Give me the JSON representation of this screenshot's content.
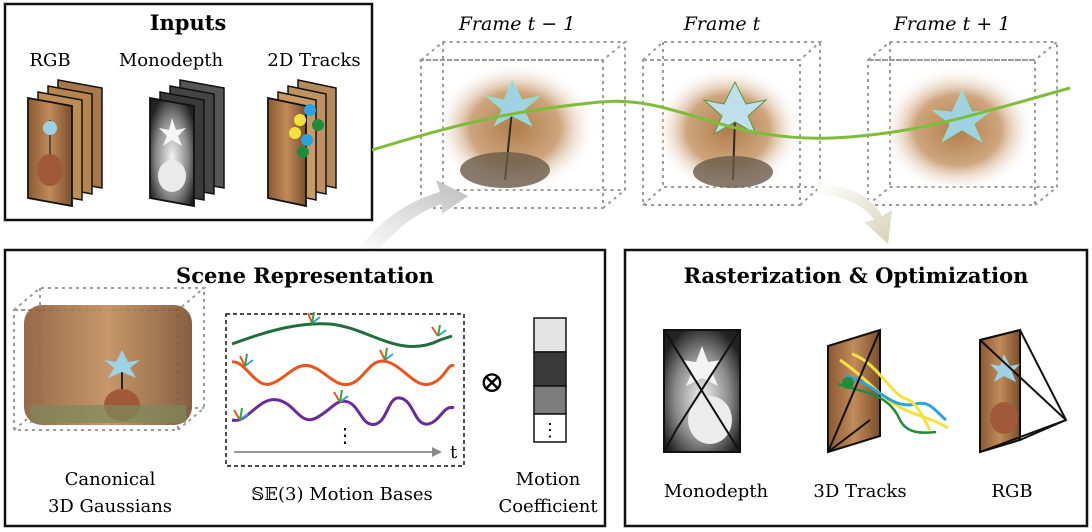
{
  "inputs": {
    "title": "Inputs",
    "rgb_label": "RGB",
    "monodepth_label": "Monodepth",
    "tracks_label": "2D Tracks"
  },
  "frames": {
    "prev_label": "Frame t − 1",
    "curr_label": "Frame t",
    "next_label": "Frame t + 1"
  },
  "scene": {
    "title": "Scene Representation",
    "canonical_label_line1": "Canonical",
    "canonical_label_line2": "3D Gaussians",
    "motion_bases_label": "𝕊𝔼(3) Motion Bases",
    "axis_t_label": "t",
    "ellipsis": "⋮",
    "otimes": "⊗",
    "coefficient_label_line1": "Motion",
    "coefficient_label_line2": "Coefficient",
    "coefficient_cells": [
      "#e4e4e4",
      "#3a3a3a",
      "#7c7c7c",
      "#ffffff"
    ]
  },
  "raster": {
    "title": "Rasterization & Optimization",
    "monodepth_label": "Monodepth",
    "tracks_label": "3D Tracks",
    "rgb_label": "RGB"
  },
  "colors": {
    "trajectory": "#7cbd3a",
    "arrow_left": "#bdbdbd",
    "arrow_right": "#d6d3b8",
    "curve_green": "#1f6e3b",
    "curve_orange": "#e8561e",
    "curve_purple": "#6a2a97"
  }
}
